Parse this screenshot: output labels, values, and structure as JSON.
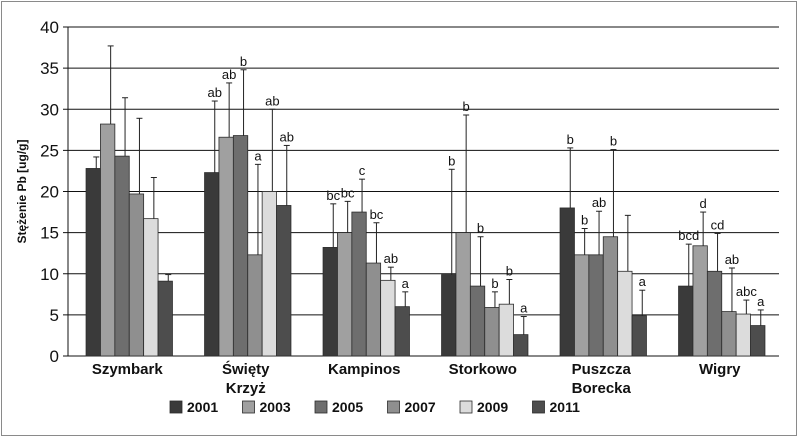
{
  "chart_data": {
    "type": "bar",
    "ylabel": "Stężenie Pb [ug/g]",
    "ylim": [
      0,
      40
    ],
    "yticks": [
      0,
      5,
      10,
      15,
      20,
      25,
      30,
      35,
      40
    ],
    "grid": true,
    "legend_position": "bottom",
    "categories": [
      [
        "Szymbark"
      ],
      [
        "Święty",
        "Krzyż"
      ],
      [
        "Kampinos"
      ],
      [
        "Storkowo"
      ],
      [
        "Puszcza",
        "Borecka"
      ],
      [
        "Wigry"
      ]
    ],
    "series": [
      {
        "name": "2001",
        "color": "#3a3a3a",
        "values": [
          22.8,
          22.3,
          13.2,
          9.9,
          18.0,
          8.5
        ],
        "errors": [
          24.2,
          31.0,
          18.5,
          22.7,
          25.3,
          13.6
        ],
        "labels": [
          "",
          "ab",
          "bc",
          "b",
          "b",
          "bcd"
        ]
      },
      {
        "name": "2003",
        "color": "#a0a0a0",
        "values": [
          28.2,
          26.6,
          15.0,
          15.0,
          12.3,
          13.4
        ],
        "errors": [
          37.7,
          33.2,
          18.8,
          29.3,
          15.5,
          17.5
        ],
        "labels": [
          "",
          "ab",
          "bc",
          "b",
          "b",
          "d"
        ]
      },
      {
        "name": "2005",
        "color": "#6e6e6e",
        "values": [
          24.3,
          26.8,
          17.5,
          8.5,
          12.3,
          10.3
        ],
        "errors": [
          31.4,
          34.8,
          21.5,
          14.5,
          17.6,
          14.9
        ],
        "labels": [
          "",
          "b",
          "c",
          "b",
          "ab",
          "cd"
        ]
      },
      {
        "name": "2007",
        "color": "#8f8f8f",
        "values": [
          19.7,
          12.3,
          11.3,
          5.9,
          14.5,
          5.4
        ],
        "errors": [
          28.9,
          23.3,
          16.2,
          7.8,
          25.1,
          10.7
        ],
        "labels": [
          "",
          "a",
          "bc",
          "b",
          "b",
          "ab"
        ]
      },
      {
        "name": "2009",
        "color": "#dcdcdc",
        "values": [
          16.7,
          20.0,
          9.2,
          6.3,
          10.3,
          5.1
        ],
        "errors": [
          21.7,
          30.0,
          10.8,
          9.3,
          17.1,
          6.8
        ],
        "labels": [
          "",
          "ab",
          "ab",
          "b",
          "",
          "abc"
        ]
      },
      {
        "name": "2011",
        "color": "#4d4d4d",
        "values": [
          9.1,
          18.3,
          6.0,
          2.6,
          4.9,
          3.7
        ],
        "errors": [
          9.9,
          25.6,
          7.8,
          4.8,
          8.0,
          5.6
        ],
        "labels": [
          "",
          "ab",
          "a",
          "a",
          "a",
          "a"
        ]
      }
    ]
  }
}
